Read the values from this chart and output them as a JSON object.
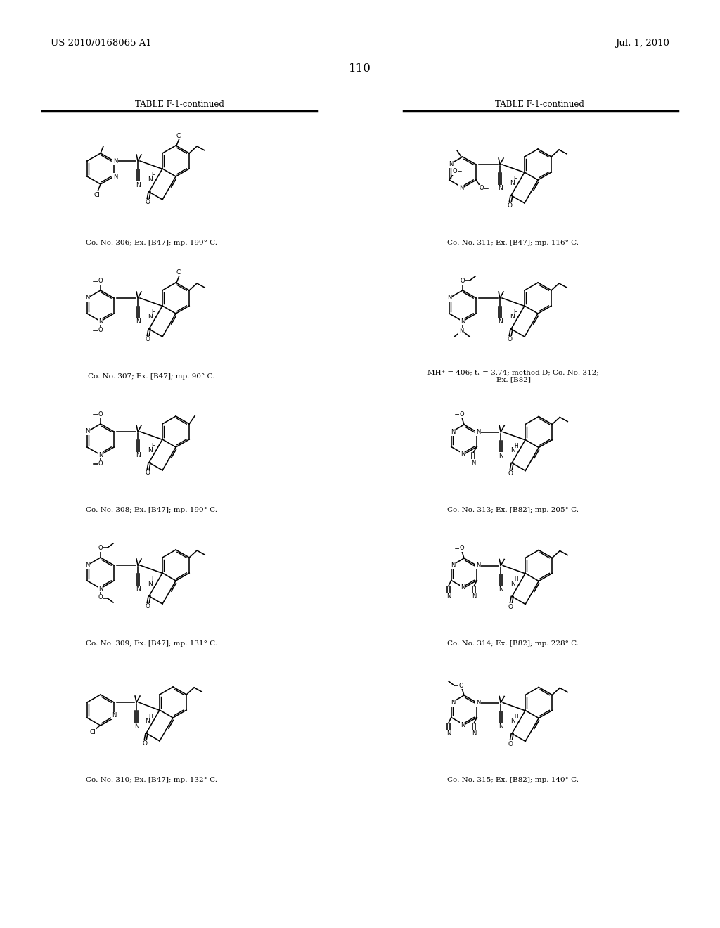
{
  "patent_left": "US 2010/0168065 A1",
  "patent_right": "Jul. 1, 2010",
  "page_number": "110",
  "table_header": "TABLE F-1-continued",
  "bg_color": "#ffffff",
  "captions": [
    "Co. No. 306; Ex. [B47]; mp. 199° C.",
    "Co. No. 307; Ex. [B47]; mp. 90° C.",
    "Co. No. 308; Ex. [B47]; mp. 190° C.",
    "Co. No. 309; Ex. [B47]; mp. 131° C.",
    "Co. No. 310; Ex. [B47]; mp. 132° C.",
    "Co. No. 311; Ex. [B47]; mp. 116° C.",
    "MH⁺ = 406; tᵣ = 3.74; method D; Co. No. 312;\nEx. [B82]",
    "Co. No. 313; Ex. [B82]; mp. 205° C.",
    "Co. No. 314; Ex. [B82]; mp. 228° C.",
    "Co. No. 315; Ex. [B82]; mp. 140° C."
  ]
}
